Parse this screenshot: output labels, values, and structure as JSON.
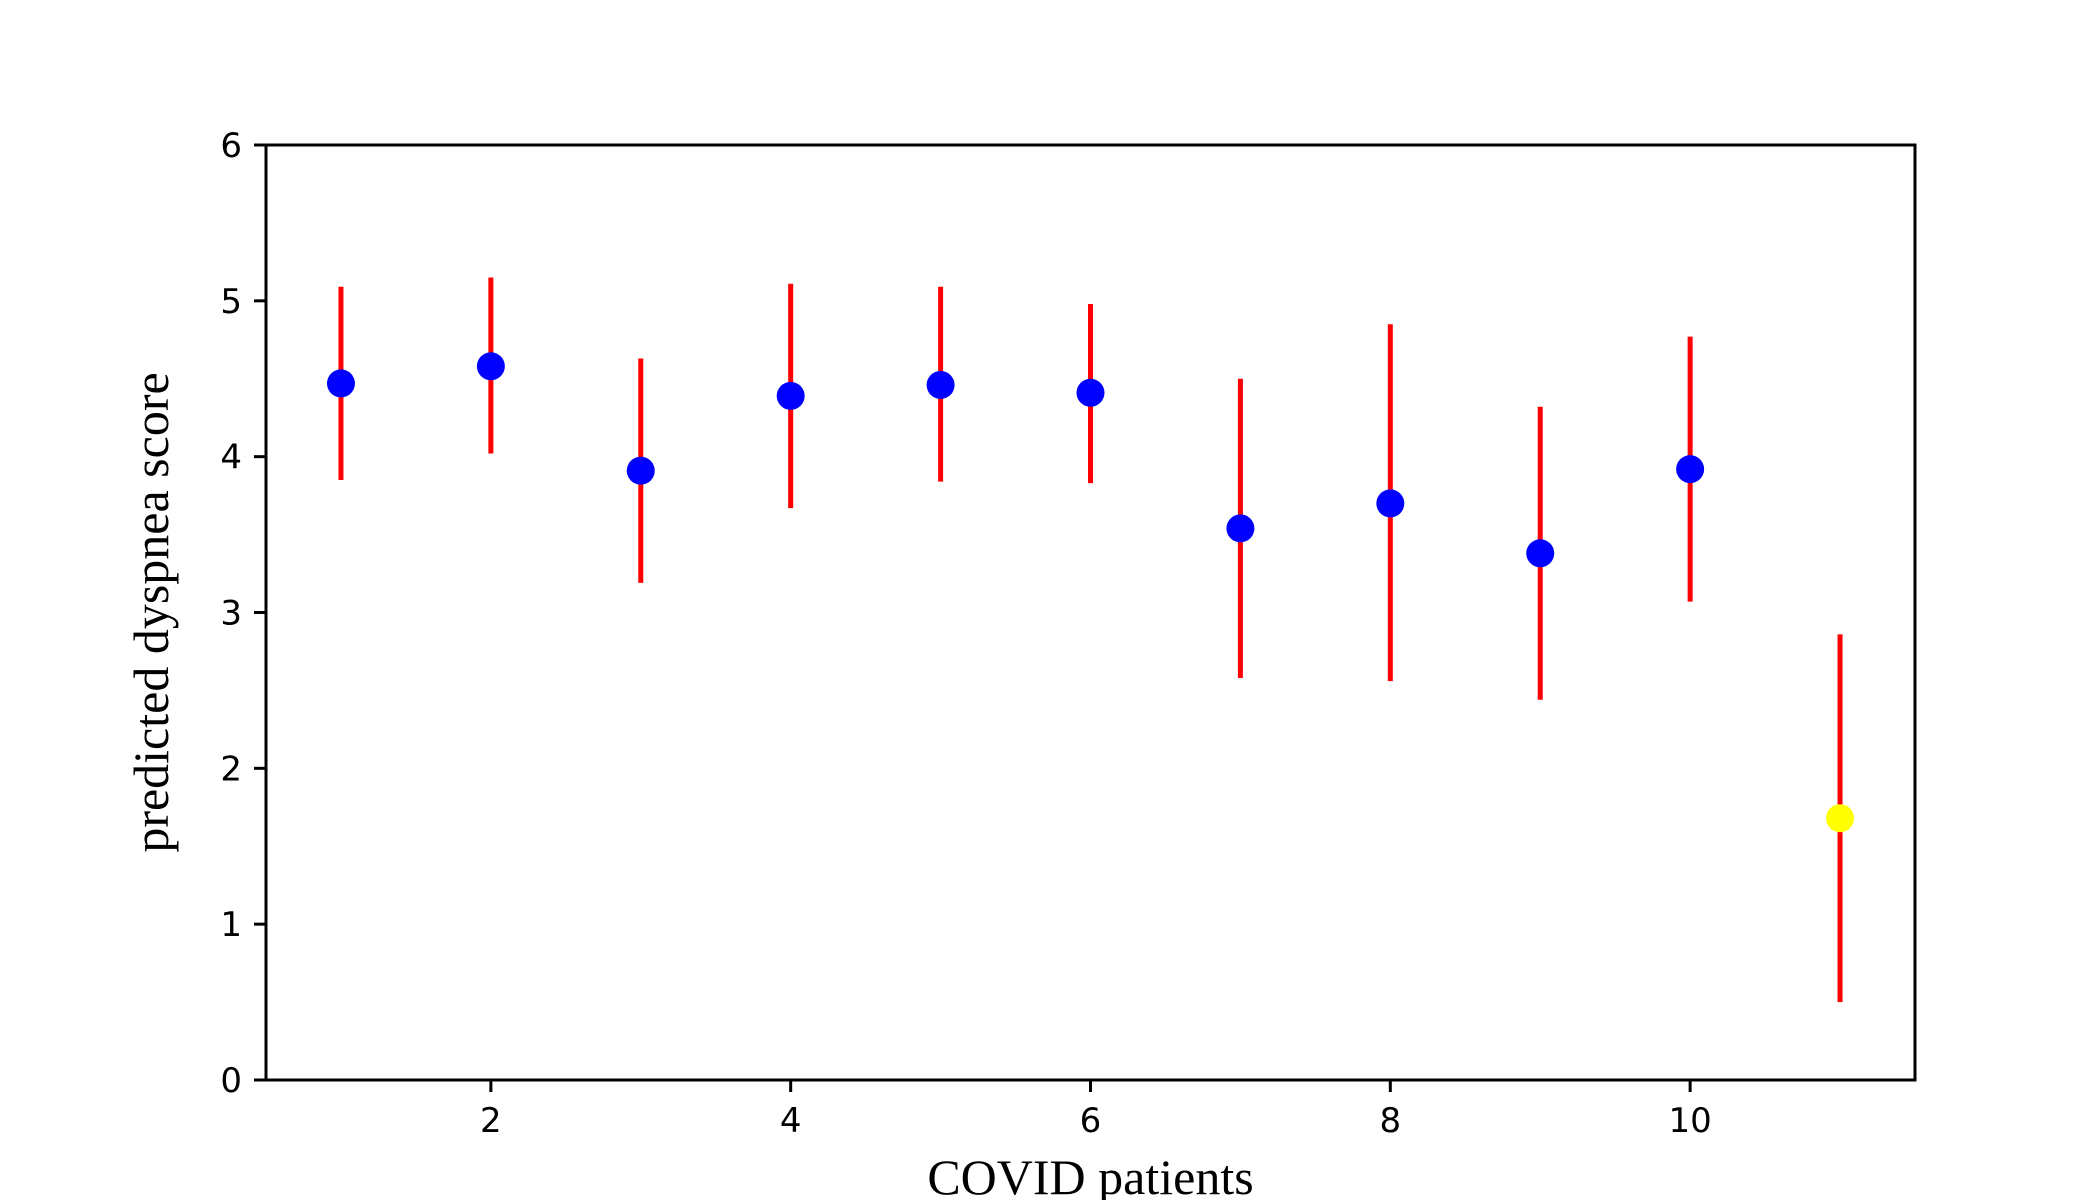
{
  "chart_data": {
    "type": "scatter",
    "title": "",
    "xlabel": "COVID patients",
    "ylabel": "predicted dyspnea score",
    "xlim": [
      0.5,
      11.5
    ],
    "ylim": [
      0,
      6
    ],
    "x_ticks": [
      2,
      4,
      6,
      8,
      10
    ],
    "y_ticks": [
      0,
      1,
      2,
      3,
      4,
      5,
      6
    ],
    "grid": false,
    "legend": "none",
    "colors": {
      "point": "#0000ff",
      "highlight": "#ffff00",
      "errorbar": "#ff0000",
      "axis": "#000000"
    },
    "points": [
      {
        "x": 1,
        "y": 4.47,
        "low": 3.85,
        "high": 5.09,
        "color": "#0000ff"
      },
      {
        "x": 2,
        "y": 4.58,
        "low": 4.02,
        "high": 5.15,
        "color": "#0000ff"
      },
      {
        "x": 3,
        "y": 3.91,
        "low": 3.19,
        "high": 4.63,
        "color": "#0000ff"
      },
      {
        "x": 4,
        "y": 4.39,
        "low": 3.67,
        "high": 5.11,
        "color": "#0000ff"
      },
      {
        "x": 5,
        "y": 4.46,
        "low": 3.84,
        "high": 5.09,
        "color": "#0000ff"
      },
      {
        "x": 6,
        "y": 4.41,
        "low": 3.83,
        "high": 4.98,
        "color": "#0000ff"
      },
      {
        "x": 7,
        "y": 3.54,
        "low": 2.58,
        "high": 4.5,
        "color": "#0000ff"
      },
      {
        "x": 8,
        "y": 3.7,
        "low": 2.56,
        "high": 4.85,
        "color": "#0000ff"
      },
      {
        "x": 9,
        "y": 3.38,
        "low": 2.44,
        "high": 4.32,
        "color": "#0000ff"
      },
      {
        "x": 10,
        "y": 3.92,
        "low": 3.07,
        "high": 4.77,
        "color": "#0000ff"
      },
      {
        "x": 11,
        "y": 1.68,
        "low": 0.5,
        "high": 2.86,
        "color": "#ffff00"
      }
    ]
  }
}
